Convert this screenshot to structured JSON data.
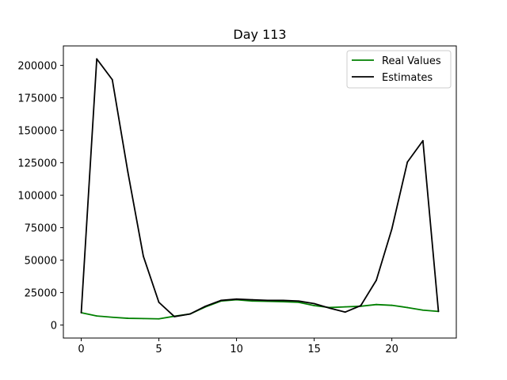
{
  "chart_data": {
    "type": "line",
    "title": "Day 113",
    "xlabel": "",
    "ylabel": "",
    "x": [
      0,
      1,
      2,
      3,
      4,
      5,
      6,
      7,
      8,
      9,
      10,
      11,
      12,
      13,
      14,
      15,
      16,
      17,
      18,
      19,
      20,
      21,
      22,
      23
    ],
    "xlim": [
      -1.15,
      24.15
    ],
    "ylim": [
      -10000,
      215000
    ],
    "xticks": [
      0,
      5,
      10,
      15,
      20
    ],
    "yticks": [
      0,
      25000,
      50000,
      75000,
      100000,
      125000,
      150000,
      175000,
      200000
    ],
    "grid": false,
    "legend_position": "top-right",
    "series": [
      {
        "name": "Real Values",
        "color": "#008000",
        "values": [
          9500,
          7000,
          6000,
          5200,
          5000,
          4800,
          6800,
          8500,
          14000,
          18500,
          19500,
          18500,
          18300,
          18000,
          17500,
          15000,
          13500,
          14000,
          14500,
          15800,
          15200,
          13500,
          11500,
          10500
        ]
      },
      {
        "name": "Estimates",
        "color": "#000000",
        "values": [
          9500,
          205000,
          189000,
          118000,
          53000,
          17500,
          6500,
          8500,
          14500,
          19000,
          20000,
          19500,
          19000,
          19000,
          18500,
          16500,
          13000,
          10000,
          15000,
          34500,
          74000,
          125500,
          142000,
          10500
        ]
      }
    ]
  }
}
